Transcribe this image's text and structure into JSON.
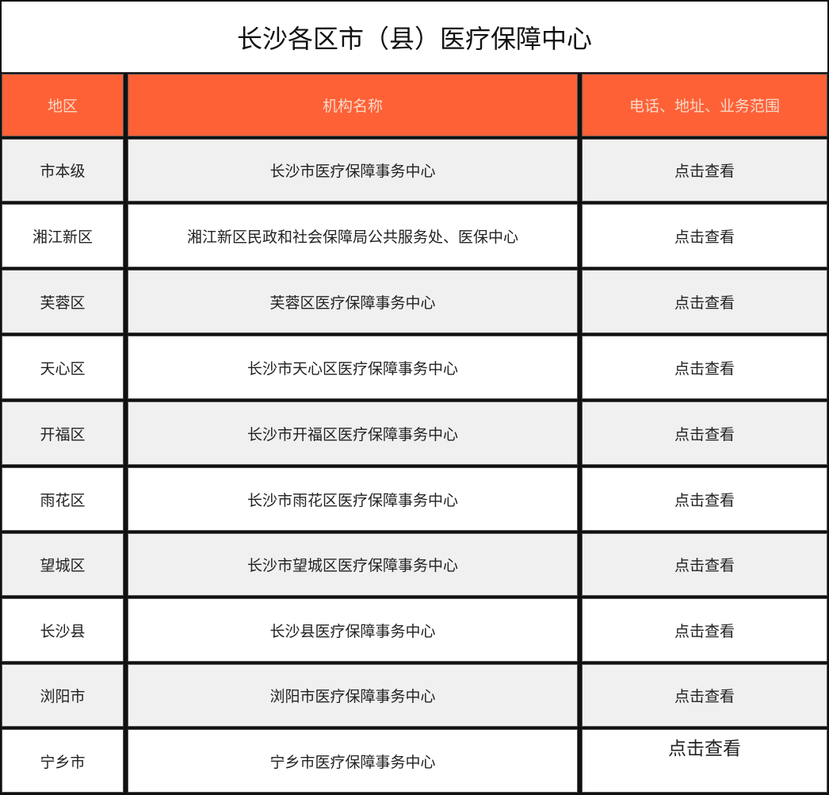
{
  "title": "长沙各区市（县）医疗保障中心",
  "colors": {
    "header_bg": "#ff6137",
    "header_text": "#f7d9c8",
    "stripe": "#f0f0f0"
  },
  "headers": [
    "地区",
    "机构名称",
    "电话、地址、业务范围"
  ],
  "rows": [
    {
      "region": "市本级",
      "org": "长沙市医疗保障事务中心",
      "link": "点击查看"
    },
    {
      "region": "湘江新区",
      "org": "湘江新区民政和社会保障局公共服务处、医保中心",
      "link": "点击查看"
    },
    {
      "region": "芙蓉区",
      "org": "芙蓉区医疗保障事务中心",
      "link": "点击查看"
    },
    {
      "region": "天心区",
      "org": "长沙市天心区医疗保障事务中心",
      "link": "点击查看"
    },
    {
      "region": "开福区",
      "org": "长沙市开福区医疗保障事务中心",
      "link": "点击查看"
    },
    {
      "region": "雨花区",
      "org": "长沙市雨花区医疗保障事务中心",
      "link": "点击查看"
    },
    {
      "region": "望城区",
      "org": "长沙市望城区医疗保障事务中心",
      "link": "点击查看"
    },
    {
      "region": "长沙县",
      "org": "长沙县医疗保障事务中心",
      "link": "点击查看"
    },
    {
      "region": "浏阳市",
      "org": "浏阳市医疗保障事务中心",
      "link": "点击查看"
    },
    {
      "region": "宁乡市",
      "org": "宁乡市医疗保障事务中心",
      "link": "点击查看"
    }
  ]
}
